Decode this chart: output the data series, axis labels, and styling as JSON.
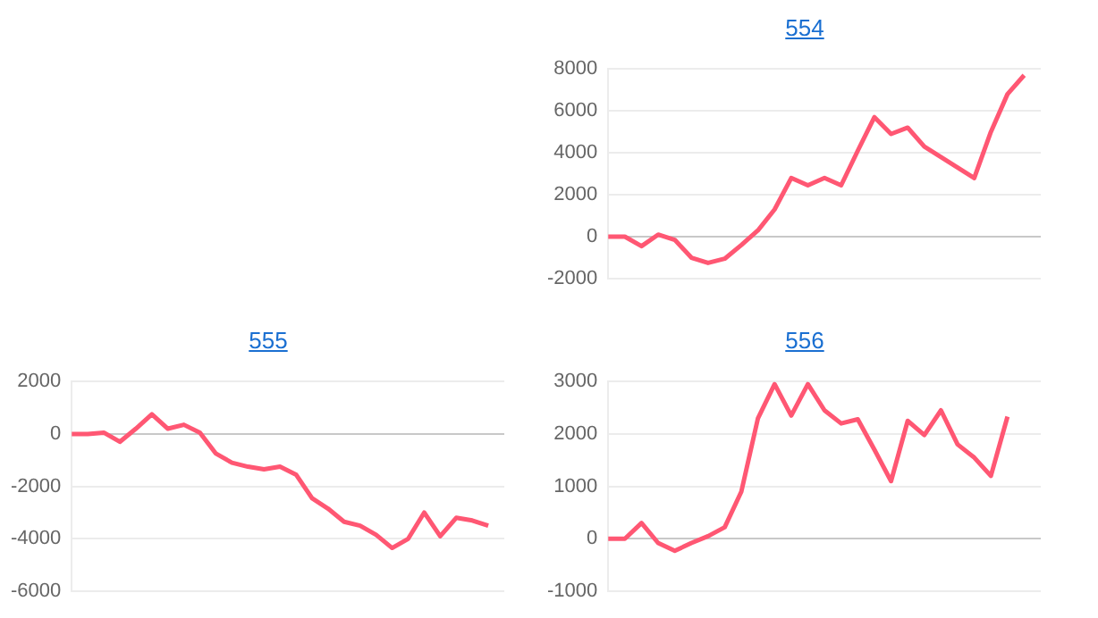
{
  "chart_data": [
    {
      "type": "line",
      "title": "554",
      "categories": [
        null,
        null,
        null,
        null,
        null,
        null,
        null,
        null,
        null,
        null,
        null,
        null,
        null,
        null,
        null,
        null,
        null,
        null,
        null,
        null,
        null,
        null,
        null,
        null,
        null,
        null,
        null
      ],
      "series": [
        {
          "color": "#ff5773",
          "values": [
            0,
            0,
            -450,
            100,
            -150,
            -1000,
            -1250,
            -1050,
            -400,
            300,
            1300,
            2800,
            2450,
            2800,
            2450,
            4100,
            5700,
            4900,
            5200,
            4300,
            3800,
            3300,
            2800,
            5000,
            6800,
            7700,
            null
          ]
        }
      ],
      "ylim": [
        -2000,
        8000
      ],
      "yticks": [
        -2000,
        0,
        2000,
        4000,
        6000,
        8000
      ],
      "grid": "y",
      "tick_labels": "y",
      "legend": false,
      "marker": "none",
      "line_style": "solid"
    },
    {
      "type": "line",
      "title": "555",
      "categories": [
        null,
        null,
        null,
        null,
        null,
        null,
        null,
        null,
        null,
        null,
        null,
        null,
        null,
        null,
        null,
        null,
        null,
        null,
        null,
        null,
        null,
        null,
        null,
        null,
        null,
        null,
        null,
        null
      ],
      "series": [
        {
          "color": "#ff5773",
          "values": [
            0,
            0,
            50,
            -300,
            200,
            750,
            200,
            350,
            50,
            -750,
            -1100,
            -1250,
            -1350,
            -1250,
            -1550,
            -2450,
            -2850,
            -3350,
            -3500,
            -3850,
            -4350,
            -4000,
            -3000,
            -3900,
            -3200,
            -3300,
            -3500,
            null
          ]
        }
      ],
      "ylim": [
        -6000,
        2000
      ],
      "yticks": [
        -6000,
        -4000,
        -2000,
        0,
        2000
      ],
      "grid": "y",
      "tick_labels": "y",
      "legend": false,
      "marker": "none",
      "line_style": "solid"
    },
    {
      "type": "line",
      "title": "556",
      "categories": [
        null,
        null,
        null,
        null,
        null,
        null,
        null,
        null,
        null,
        null,
        null,
        null,
        null,
        null,
        null,
        null,
        null,
        null,
        null,
        null,
        null,
        null,
        null,
        null,
        null,
        null,
        null
      ],
      "series": [
        {
          "color": "#ff5773",
          "values": [
            0,
            0,
            300,
            -80,
            -230,
            -80,
            50,
            220,
            900,
            2300,
            2950,
            2350,
            2950,
            2450,
            2200,
            2280,
            1700,
            1100,
            2250,
            1980,
            2450,
            1800,
            1550,
            1200,
            2330,
            null,
            null
          ]
        }
      ],
      "ylim": [
        -1000,
        3000
      ],
      "yticks": [
        -1000,
        0,
        1000,
        2000,
        3000
      ],
      "grid": "y",
      "tick_labels": "y",
      "legend": false,
      "marker": "none",
      "line_style": "solid"
    }
  ]
}
